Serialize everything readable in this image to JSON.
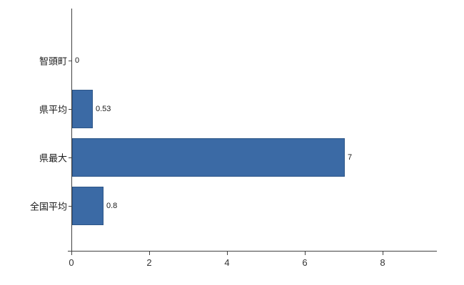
{
  "chart_data": {
    "type": "bar",
    "orientation": "horizontal",
    "title": "",
    "categories": [
      "智頭町",
      "県平均",
      "県最大",
      "全国平均"
    ],
    "values": [
      0,
      0.53,
      7,
      0.8
    ],
    "value_labels": [
      "0",
      "0.53",
      "7",
      "0.8"
    ],
    "xlim": [
      0,
      8
    ],
    "xticks": [
      0,
      2,
      4,
      6,
      8
    ],
    "xtick_labels": [
      "0",
      "2",
      "4",
      "6",
      "8"
    ],
    "bar_color": "#3b6aa5",
    "bar_border_color": "#2d5688",
    "axis_color": "#404040",
    "grid": false,
    "legend": false,
    "background_color": "#ffffff"
  }
}
